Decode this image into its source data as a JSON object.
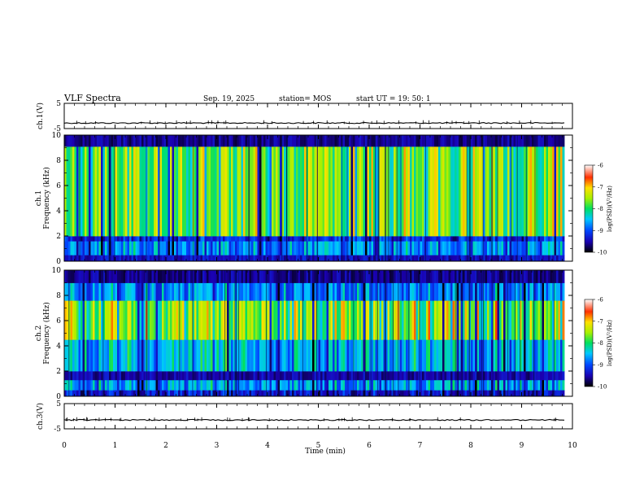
{
  "header": {
    "title": "VLF Spectra",
    "date": "Sep. 19, 2025",
    "station": "station= MOS",
    "start": "start  UT =   19: 50: 1"
  },
  "chart_data": [
    {
      "type": "line",
      "name": "ch1-waveform",
      "ylabel": "ch.1(V)",
      "ylim": [
        -5,
        5
      ],
      "yticks": [
        "5",
        "-5"
      ],
      "level": -2.8,
      "xlim": [
        0,
        10
      ]
    },
    {
      "type": "heatmap",
      "name": "ch1-spectrogram",
      "ylabel": [
        "ch.1",
        "Frequency (kHz)"
      ],
      "ylim": [
        0,
        10
      ],
      "yticks": [
        "0",
        "2",
        "4",
        "6",
        "8",
        "10"
      ],
      "xlim": [
        0,
        10
      ],
      "data_end": 9.83,
      "bands": [
        {
          "from": 0,
          "to": 0.5,
          "level": 0.15
        },
        {
          "from": 0.5,
          "to": 1.6,
          "level": 0.38
        },
        {
          "from": 1.6,
          "to": 2.0,
          "level": 0.22
        },
        {
          "from": 2.0,
          "to": 9.1,
          "level": 0.66
        },
        {
          "from": 9.1,
          "to": 10,
          "level": 0.1
        }
      ],
      "colorbar": {
        "label": "log(PSD)(V²/Hz)",
        "ticks": [
          "-6",
          "-7",
          "-8",
          "-9",
          "-10"
        ],
        "range": [
          -10,
          -6
        ]
      }
    },
    {
      "type": "heatmap",
      "name": "ch2-spectrogram",
      "ylabel": [
        "ch.2",
        "Frequency (kHz)"
      ],
      "ylim": [
        0,
        10
      ],
      "yticks": [
        "0",
        "2",
        "4",
        "6",
        "8",
        "10"
      ],
      "xlim": [
        0,
        10
      ],
      "data_end": 9.83,
      "bands": [
        {
          "from": 0,
          "to": 0.5,
          "level": 0.2
        },
        {
          "from": 0.5,
          "to": 1.3,
          "level": 0.42
        },
        {
          "from": 1.3,
          "to": 2.0,
          "level": 0.12
        },
        {
          "from": 2.0,
          "to": 4.5,
          "level": 0.45
        },
        {
          "from": 4.5,
          "to": 7.6,
          "level": 0.72
        },
        {
          "from": 7.6,
          "to": 9.0,
          "level": 0.38
        },
        {
          "from": 9.0,
          "to": 10,
          "level": 0.1
        }
      ],
      "colorbar": {
        "label": "log(PSD)(V²/Hz)",
        "ticks": [
          "-6",
          "-7",
          "-8",
          "-9",
          "-10"
        ],
        "range": [
          -10,
          -6
        ]
      }
    },
    {
      "type": "line",
      "name": "ch3-waveform",
      "ylabel": "ch.3(V)",
      "ylim": [
        -5,
        5
      ],
      "yticks": [
        "5",
        "-5"
      ],
      "level": -1.5,
      "xlim": [
        0,
        10
      ]
    }
  ],
  "xaxis": {
    "label": "Time (min)",
    "ticks": [
      "0",
      "1",
      "2",
      "3",
      "4",
      "5",
      "6",
      "7",
      "8",
      "9",
      "10"
    ]
  }
}
